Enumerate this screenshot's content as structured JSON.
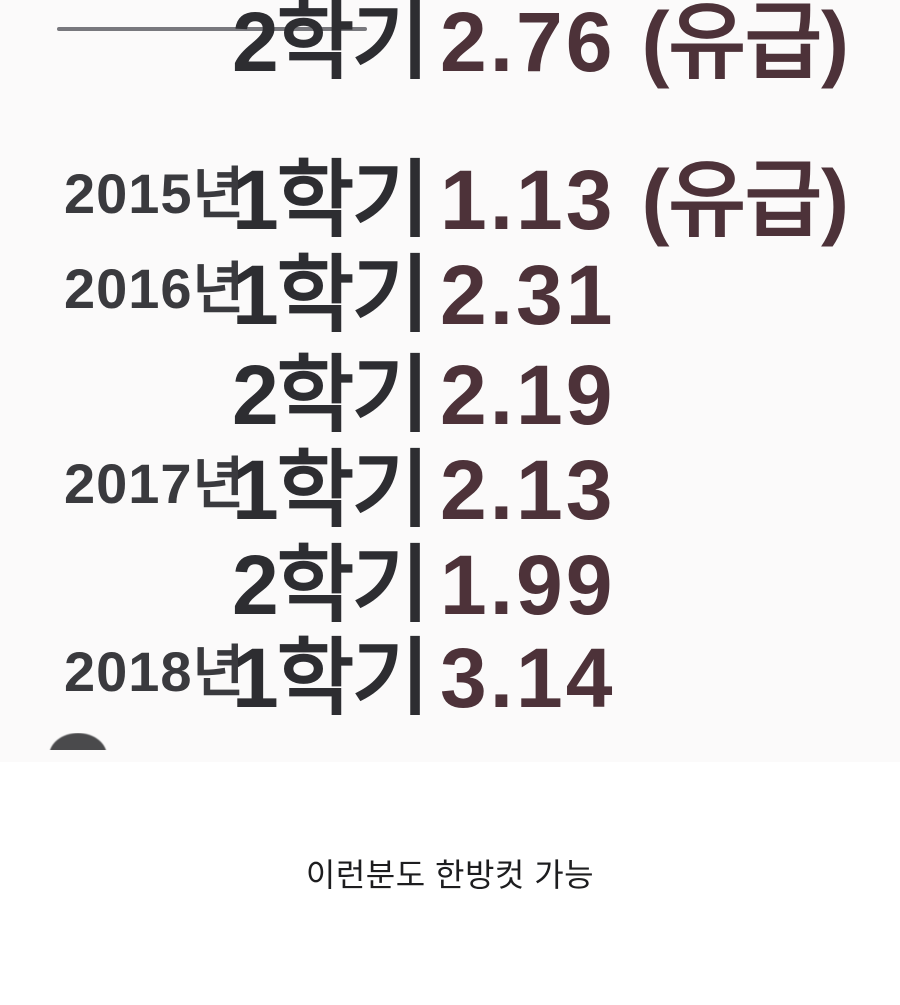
{
  "colors": {
    "bg_page": "#ffffff",
    "bg_image": "#fbfafa",
    "year_text": "#3a3a3e",
    "semester_text": "#2d2d31",
    "score_text": "#4d3239",
    "divider": "#6d6d72",
    "caption_text": "#1d1d1f",
    "arc": "#4a4a4c"
  },
  "grades": {
    "rows": [
      {
        "year": "2015년",
        "semester": "1학기",
        "score": "1.13",
        "badge": "(유급)"
      },
      {
        "year": "2016년",
        "semester": "1학기",
        "score": "2.31",
        "badge": ""
      },
      {
        "year": "",
        "semester": "2학기",
        "score": "2.19",
        "badge": ""
      },
      {
        "year": "2017년",
        "semester": "1학기",
        "score": "2.13",
        "badge": ""
      },
      {
        "year": "",
        "semester": "2학기",
        "score": "1.99",
        "badge": ""
      },
      {
        "year": "2018년",
        "semester": "1학기",
        "score": "3.14",
        "badge": ""
      },
      {
        "year": "",
        "semester": "2학기",
        "score": "2.76",
        "badge": "(유급)"
      }
    ]
  },
  "caption": {
    "text": "이런분도 한방컷 가능"
  }
}
